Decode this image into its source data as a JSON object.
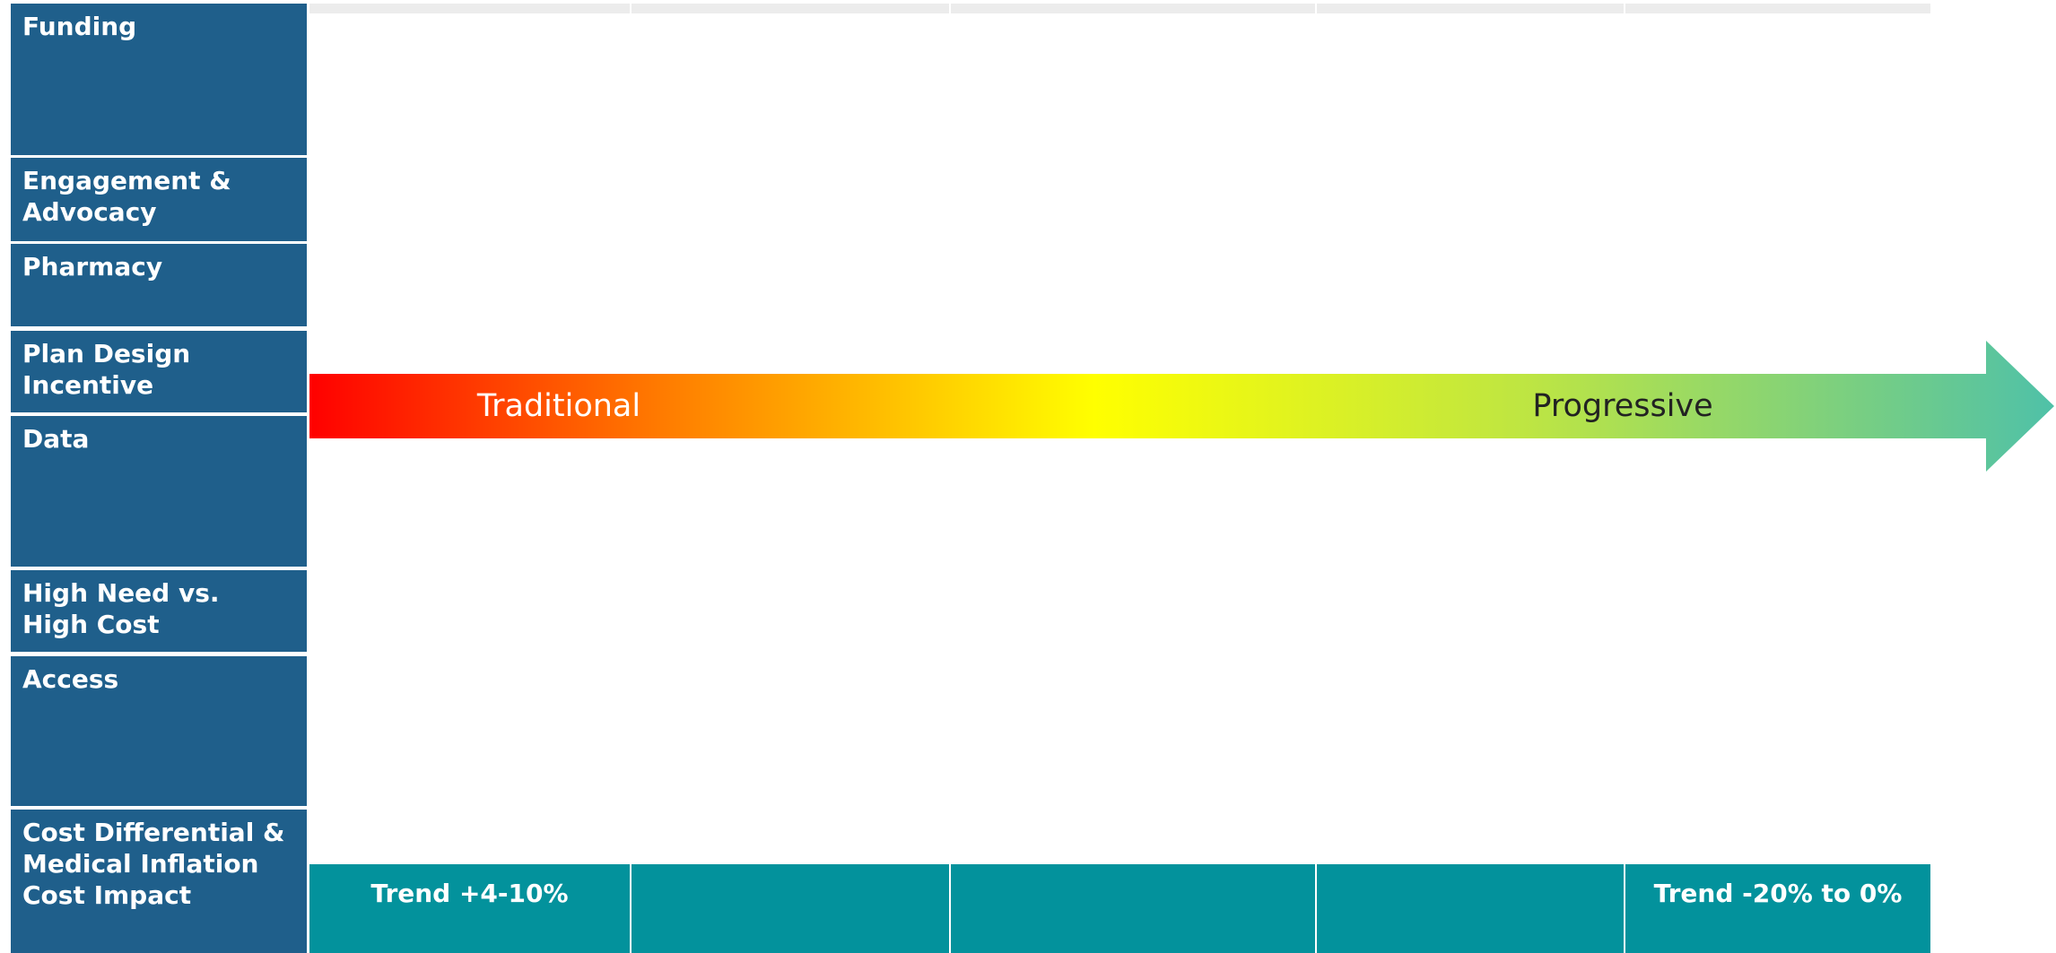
{
  "rows": [
    [
      "Funding"
    ],
    [
      "Engagement &",
      "Advocacy"
    ],
    [
      "Pharmacy"
    ],
    [
      "Plan Design",
      "Incentive"
    ],
    [
      "Data"
    ],
    [
      "High Need vs.",
      "High Cost"
    ],
    [
      "Access"
    ],
    [
      "Cost Differential &",
      "Medical Inflation",
      "Cost Impact"
    ]
  ],
  "arrow": {
    "start_label": "Traditional",
    "end_label": "Progressive"
  },
  "trend": {
    "start": "Trend +4-10%",
    "end": "Trend -20% to 0%"
  }
}
